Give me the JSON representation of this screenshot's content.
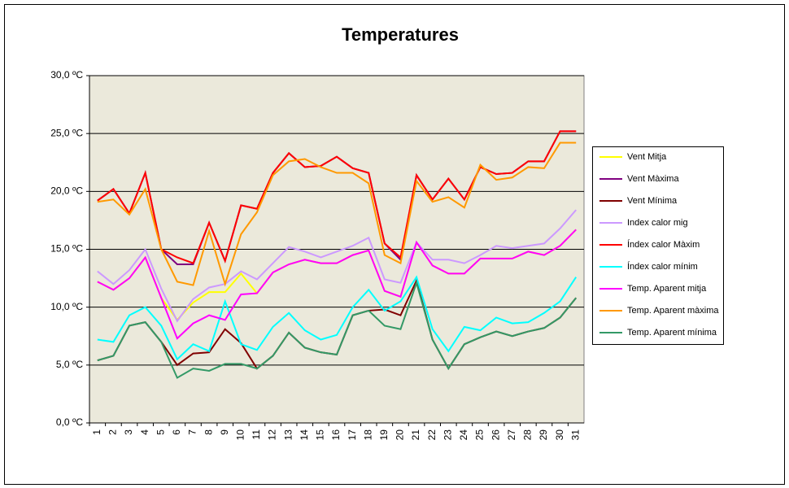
{
  "chart_data": {
    "type": "line",
    "title": "Temperatures",
    "categories": [
      "1",
      "2",
      "3",
      "4",
      "5",
      "6",
      "7",
      "8",
      "9",
      "10",
      "11",
      "12",
      "13",
      "14",
      "15",
      "16",
      "17",
      "18",
      "19",
      "20",
      "21",
      "22",
      "23",
      "24",
      "25",
      "26",
      "27",
      "28",
      "29",
      "30",
      "31"
    ],
    "ylim": [
      0,
      30
    ],
    "yticks": [
      {
        "value": 0,
        "label": "0,0 ºC"
      },
      {
        "value": 5,
        "label": "5,0 ºC"
      },
      {
        "value": 10,
        "label": "10,0 ºC"
      },
      {
        "value": 15,
        "label": "15,0 ºC"
      },
      {
        "value": 20,
        "label": "20,0 ºC"
      },
      {
        "value": 25,
        "label": "25,0 ºC"
      },
      {
        "value": 30,
        "label": "30,0 ºC"
      }
    ],
    "grid": true,
    "legend": "right",
    "series": [
      {
        "name": "Vent Mitja",
        "color": "#ffff00",
        "values": [
          12.2,
          11.5,
          12.5,
          14.3,
          10.8,
          8.9,
          10.4,
          11.3,
          11.3,
          12.9,
          11.2,
          13.0,
          13.7,
          14.1,
          13.8,
          13.8,
          14.5,
          14.9,
          11.4,
          10.9,
          15.6,
          13.6,
          12.9,
          12.9,
          14.2,
          14.2,
          14.2,
          14.8,
          14.5,
          15.3,
          16.7
        ]
      },
      {
        "name": "Vent Màxima",
        "color": "#800080",
        "values": [
          19.2,
          20.2,
          18.1,
          21.6,
          15.0,
          13.7,
          13.7,
          17.3,
          14.0,
          18.8,
          18.5,
          21.6,
          23.3,
          22.1,
          22.2,
          23.0,
          22.0,
          21.6,
          15.5,
          14.1,
          21.4,
          19.3,
          21.1,
          19.3,
          22.1,
          21.5,
          21.6,
          22.6,
          22.6,
          25.2,
          25.2
        ]
      },
      {
        "name": "Vent Mínima",
        "color": "#800000",
        "values": [
          5.4,
          5.8,
          8.4,
          8.7,
          7.0,
          5.0,
          6.0,
          6.1,
          8.1,
          6.9,
          4.7,
          5.8,
          7.8,
          6.5,
          6.1,
          5.9,
          9.3,
          9.7,
          9.8,
          9.3,
          12.3,
          7.2,
          4.7,
          6.8,
          7.4,
          7.9,
          7.5,
          7.9,
          8.2,
          9.1,
          10.8
        ]
      },
      {
        "name": "Index calor mig",
        "color": "#cc99ff",
        "values": [
          13.1,
          12.0,
          13.2,
          15.0,
          11.6,
          8.8,
          10.7,
          11.7,
          12.0,
          13.1,
          12.4,
          13.8,
          15.2,
          14.8,
          14.3,
          14.8,
          15.3,
          16.0,
          12.4,
          12.1,
          15.6,
          14.1,
          14.1,
          13.8,
          14.5,
          15.3,
          15.1,
          15.3,
          15.5,
          16.8,
          18.4
        ]
      },
      {
        "name": "Índex calor Màxim",
        "color": "#ff0000",
        "values": [
          19.2,
          20.2,
          18.1,
          21.6,
          15.0,
          14.3,
          13.8,
          17.3,
          14.0,
          18.8,
          18.5,
          21.6,
          23.3,
          22.1,
          22.2,
          23.0,
          22.0,
          21.6,
          15.5,
          14.3,
          21.4,
          19.3,
          21.1,
          19.3,
          22.1,
          21.5,
          21.6,
          22.6,
          22.6,
          25.2,
          25.2
        ]
      },
      {
        "name": "Índex calor mínim",
        "color": "#00ffff",
        "values": [
          7.2,
          7.0,
          9.3,
          10.0,
          8.4,
          5.5,
          6.8,
          6.2,
          10.5,
          6.8,
          6.3,
          8.3,
          9.5,
          8.0,
          7.2,
          7.6,
          10.0,
          11.5,
          9.7,
          10.5,
          12.6,
          8.1,
          6.2,
          8.3,
          8.0,
          9.1,
          8.6,
          8.7,
          9.5,
          10.5,
          12.6
        ]
      },
      {
        "name": "Temp. Aparent mitja",
        "color": "#ff00ff",
        "values": [
          12.2,
          11.5,
          12.5,
          14.3,
          10.8,
          7.3,
          8.6,
          9.3,
          8.9,
          11.1,
          11.2,
          13.0,
          13.7,
          14.1,
          13.8,
          13.8,
          14.5,
          14.9,
          11.4,
          10.9,
          15.6,
          13.6,
          12.9,
          12.9,
          14.2,
          14.2,
          14.2,
          14.8,
          14.5,
          15.3,
          16.7
        ]
      },
      {
        "name": "Temp. Aparent màxima",
        "color": "#ff9900",
        "values": [
          19.1,
          19.3,
          18.0,
          20.2,
          15.0,
          12.2,
          11.9,
          16.6,
          12.0,
          16.3,
          18.2,
          21.4,
          22.6,
          22.8,
          22.1,
          21.6,
          21.6,
          20.7,
          14.5,
          13.8,
          20.9,
          19.1,
          19.5,
          18.6,
          22.3,
          21.0,
          21.2,
          22.1,
          22.0,
          24.2,
          24.2
        ]
      },
      {
        "name": "Temp. Aparent mínima",
        "color": "#339966",
        "values": [
          5.4,
          5.8,
          8.4,
          8.7,
          7.0,
          3.9,
          4.7,
          4.5,
          5.1,
          5.1,
          4.7,
          5.8,
          7.8,
          6.5,
          6.1,
          5.9,
          9.3,
          9.7,
          8.4,
          8.1,
          12.1,
          7.2,
          4.7,
          6.8,
          7.4,
          7.9,
          7.5,
          7.9,
          8.2,
          9.1,
          10.8
        ]
      }
    ]
  }
}
